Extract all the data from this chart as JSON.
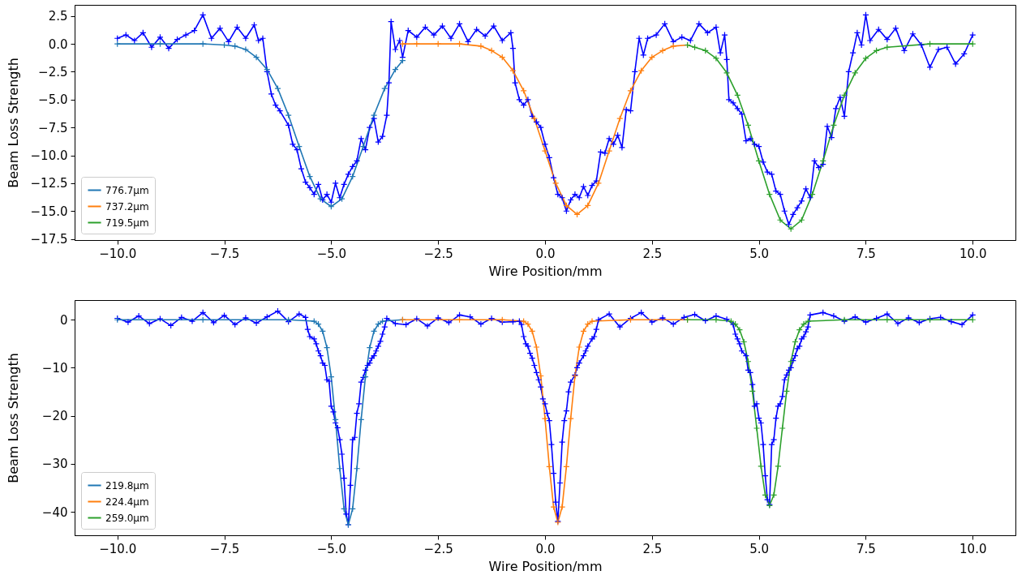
{
  "chart_data": [
    {
      "type": "line",
      "xlabel": "Wire Position/mm",
      "ylabel": "Beam Loss Strength",
      "xlim": [
        -11,
        11
      ],
      "ylim": [
        -17.6,
        3.5
      ],
      "xticks": [
        {
          "value": -10,
          "label": "−10.0"
        },
        {
          "value": -7.5,
          "label": "−7.5"
        },
        {
          "value": -5,
          "label": "−5.0"
        },
        {
          "value": -2.5,
          "label": "−2.5"
        },
        {
          "value": 0,
          "label": "0.0"
        },
        {
          "value": 2.5,
          "label": "2.5"
        },
        {
          "value": 5,
          "label": "5.0"
        },
        {
          "value": 7.5,
          "label": "7.5"
        },
        {
          "value": 10,
          "label": "10.0"
        }
      ],
      "yticks": [
        {
          "value": 2.5,
          "label": "2.5"
        },
        {
          "value": 0,
          "label": "0.0"
        },
        {
          "value": -2.5,
          "label": "−2.5"
        },
        {
          "value": -5,
          "label": "−5.0"
        },
        {
          "value": -7.5,
          "label": "−7.5"
        },
        {
          "value": -10,
          "label": "−10.0"
        },
        {
          "value": -12.5,
          "label": "−12.5"
        },
        {
          "value": -15,
          "label": "−15.0"
        },
        {
          "value": -17.5,
          "label": "−17.5"
        }
      ],
      "legend": "bottom left",
      "marker": "cross",
      "line_style": "solid",
      "grid": false,
      "series": [
        {
          "color": "#0000ff",
          "x": [
            -10,
            -9.8,
            -9.6,
            -9.4,
            -9.2,
            -9,
            -8.8,
            -8.6,
            -8.4,
            -8.2,
            -8,
            -7.8,
            -7.6,
            -7.4,
            -7.2,
            -7,
            -6.8,
            -6.7,
            -6.6,
            -6.5,
            -6.4,
            -6.3,
            -6.2,
            -6,
            -5.9,
            -5.8,
            -5.7,
            -5.6,
            -5.5,
            -5.4,
            -5.3,
            -5.2,
            -5.1,
            -5,
            -4.9,
            -4.8,
            -4.7,
            -4.6,
            -4.5,
            -4.4,
            -4.3,
            -4.2,
            -4.1,
            -4,
            -3.9,
            -3.8,
            -3.7,
            -3.65,
            -3.6,
            -3.5,
            -3.4,
            -3.33,
            -3.2,
            -3,
            -2.8,
            -2.6,
            -2.4,
            -2.2,
            -2,
            -1.8,
            -1.6,
            -1.4,
            -1.2,
            -1,
            -0.8,
            -0.75,
            -0.7,
            -0.6,
            -0.5,
            -0.4,
            -0.3,
            -0.2,
            -0.1,
            0,
            0.1,
            0.2,
            0.3,
            0.4,
            0.5,
            0.6,
            0.7,
            0.8,
            0.9,
            1,
            1.1,
            1.2,
            1.3,
            1.4,
            1.5,
            1.6,
            1.7,
            1.8,
            1.9,
            2,
            2.1,
            2.2,
            2.3,
            2.4,
            2.6,
            2.8,
            3,
            3.2,
            3.4,
            3.6,
            3.8,
            4,
            4.1,
            4.2,
            4.25,
            4.3,
            4.4,
            4.5,
            4.6,
            4.7,
            4.8,
            4.9,
            5,
            5.1,
            5.2,
            5.3,
            5.4,
            5.5,
            5.6,
            5.7,
            5.8,
            5.9,
            6,
            6.1,
            6.2,
            6.3,
            6.4,
            6.5,
            6.6,
            6.7,
            6.8,
            6.9,
            7,
            7.1,
            7.2,
            7.3,
            7.4,
            7.5,
            7.6,
            7.8,
            8,
            8.2,
            8.4,
            8.6,
            8.8,
            9,
            9.2,
            9.4,
            9.6,
            9.8,
            10
          ],
          "values": [
            0.5,
            0.8,
            0.3,
            1.0,
            -0.3,
            0.6,
            -0.4,
            0.4,
            0.8,
            1.2,
            2.6,
            0.5,
            1.4,
            0.2,
            1.5,
            0.5,
            1.7,
            0.3,
            0.5,
            -2.5,
            -4.5,
            -5.5,
            -6.0,
            -7.3,
            -9.0,
            -9.5,
            -11.2,
            -12.4,
            -12.9,
            -13.5,
            -12.6,
            -14.0,
            -13.5,
            -14.2,
            -12.5,
            -13.8,
            -12.6,
            -11.7,
            -11.0,
            -10.5,
            -8.5,
            -9.5,
            -7.5,
            -6.7,
            -8.8,
            -8.3,
            -6.4,
            -3.5,
            2.0,
            -0.5,
            0.3,
            -1.2,
            1.2,
            0.6,
            1.5,
            0.8,
            1.6,
            0.5,
            1.8,
            0.2,
            1.3,
            0.7,
            1.6,
            0.3,
            1.0,
            -0.4,
            -3.5,
            -5.0,
            -5.5,
            -5.0,
            -6.5,
            -7.0,
            -7.5,
            -9.0,
            -10.2,
            -12.0,
            -13.5,
            -13.8,
            -15.0,
            -14.0,
            -13.5,
            -13.8,
            -12.8,
            -13.6,
            -12.7,
            -12.3,
            -9.7,
            -9.8,
            -8.5,
            -9.0,
            -8.2,
            -9.3,
            -5.9,
            -6.0,
            -2.5,
            0.5,
            -1.0,
            0.5,
            0.8,
            1.8,
            0.2,
            0.6,
            0.3,
            1.8,
            1.0,
            1.5,
            -0.8,
            0.8,
            -1.4,
            -5.0,
            -5.3,
            -5.8,
            -6.3,
            -8.7,
            -8.5,
            -9.0,
            -9.2,
            -10.6,
            -11.5,
            -11.7,
            -13.2,
            -13.5,
            -15.0,
            -16.2,
            -15.3,
            -14.7,
            -14.1,
            -13.0,
            -13.8,
            -10.5,
            -11.1,
            -10.8,
            -7.4,
            -8.4,
            -5.8,
            -4.8,
            -6.5,
            -2.5,
            -0.8,
            1.0,
            -0.1,
            2.6,
            0.3,
            1.3,
            0.4,
            1.4,
            -0.6,
            0.9,
            -0.1,
            -2.1,
            -0.5,
            -0.3,
            -1.8,
            -0.9,
            0.8
          ]
        },
        {
          "name": "776.7µm",
          "color": "#1f77b4",
          "x": [
            -10,
            -9,
            -8,
            -7.5,
            -7.25,
            -7,
            -6.75,
            -6.5,
            -6.25,
            -6,
            -5.75,
            -5.5,
            -5.25,
            -5,
            -4.75,
            -4.5,
            -4.25,
            -4,
            -3.75,
            -3.5,
            -3.33
          ],
          "values": [
            0,
            0,
            0,
            -0.1,
            -0.2,
            -0.5,
            -1.2,
            -2.3,
            -4.0,
            -6.4,
            -9.2,
            -11.9,
            -13.9,
            -14.6,
            -13.9,
            -11.9,
            -9.2,
            -6.4,
            -4.0,
            -2.3,
            -1.5
          ]
        },
        {
          "name": "737.2µm",
          "color": "#ff7f0e",
          "x": [
            -3.33,
            -3,
            -2.5,
            -2,
            -1.5,
            -1.25,
            -1,
            -0.75,
            -0.5,
            -0.25,
            0,
            0.25,
            0.5,
            0.75,
            1,
            1.25,
            1.5,
            1.75,
            2,
            2.25,
            2.5,
            2.75,
            3,
            3.33
          ],
          "values": [
            0,
            0,
            0,
            0,
            -0.2,
            -0.6,
            -1.2,
            -2.4,
            -4.2,
            -6.7,
            -9.6,
            -12.5,
            -14.5,
            -15.3,
            -14.5,
            -12.5,
            -9.6,
            -6.7,
            -4.2,
            -2.4,
            -1.2,
            -0.6,
            -0.2,
            -0.1
          ]
        },
        {
          "name": "719.5µm",
          "color": "#2ca02c",
          "x": [
            3.33,
            3.5,
            3.75,
            4,
            4.25,
            4.5,
            4.75,
            5,
            5.25,
            5.5,
            5.75,
            6,
            6.25,
            6.5,
            6.75,
            7,
            7.25,
            7.5,
            7.75,
            8,
            9,
            10
          ],
          "values": [
            -0.1,
            -0.3,
            -0.6,
            -1.3,
            -2.6,
            -4.6,
            -7.3,
            -10.5,
            -13.5,
            -15.8,
            -16.6,
            -15.8,
            -13.5,
            -10.5,
            -7.3,
            -4.6,
            -2.6,
            -1.3,
            -0.6,
            -0.3,
            0,
            0
          ]
        }
      ]
    },
    {
      "type": "line",
      "xlabel": "Wire Position/mm",
      "ylabel": "Beam Loss Strength",
      "xlim": [
        -11,
        11
      ],
      "ylim": [
        -44.9,
        4.1
      ],
      "xticks": [
        {
          "value": -10,
          "label": "−10.0"
        },
        {
          "value": -7.5,
          "label": "−7.5"
        },
        {
          "value": -5,
          "label": "−5.0"
        },
        {
          "value": -2.5,
          "label": "−2.5"
        },
        {
          "value": 0,
          "label": "0.0"
        },
        {
          "value": 2.5,
          "label": "2.5"
        },
        {
          "value": 5,
          "label": "5.0"
        },
        {
          "value": 7.5,
          "label": "7.5"
        },
        {
          "value": 10,
          "label": "10.0"
        }
      ],
      "yticks": [
        0,
        {
          "value": -10,
          "label": "−10"
        },
        {
          "value": -20,
          "label": "−20"
        },
        {
          "value": -30,
          "label": "−30"
        },
        {
          "value": -40,
          "label": "−40"
        }
      ],
      "legend": "bottom left",
      "marker": "cross",
      "line_style": "solid",
      "grid": false,
      "series": [
        {
          "color": "#0000ff",
          "x": [
            -10,
            -9.75,
            -9.5,
            -9.25,
            -9,
            -8.75,
            -8.5,
            -8.25,
            -8,
            -7.75,
            -7.5,
            -7.25,
            -7,
            -6.75,
            -6.5,
            -6.25,
            -6,
            -5.75,
            -5.6,
            -5.55,
            -5.5,
            -5.4,
            -5.35,
            -5.3,
            -5.25,
            -5.2,
            -5.15,
            -5.1,
            -5.05,
            -5,
            -4.95,
            -4.9,
            -4.85,
            -4.8,
            -4.75,
            -4.7,
            -4.65,
            -4.6,
            -4.55,
            -4.5,
            -4.45,
            -4.4,
            -4.35,
            -4.3,
            -4.25,
            -4.2,
            -4.15,
            -4.1,
            -4.05,
            -4,
            -3.95,
            -3.9,
            -3.85,
            -3.8,
            -3.75,
            -3.7,
            -3.5,
            -3.25,
            -3,
            -2.75,
            -2.5,
            -2.25,
            -2,
            -1.75,
            -1.5,
            -1.25,
            -1,
            -0.75,
            -0.6,
            -0.55,
            -0.5,
            -0.45,
            -0.4,
            -0.35,
            -0.3,
            -0.25,
            -0.2,
            -0.15,
            -0.1,
            -0.05,
            0,
            0.05,
            0.1,
            0.15,
            0.2,
            0.25,
            0.3,
            0.35,
            0.4,
            0.45,
            0.5,
            0.55,
            0.6,
            0.7,
            0.75,
            0.8,
            0.9,
            0.95,
            1,
            1.1,
            1.15,
            1.2,
            1.25,
            1.5,
            1.75,
            2,
            2.25,
            2.5,
            2.75,
            3,
            3.25,
            3.5,
            3.75,
            4,
            4.25,
            4.4,
            4.45,
            4.5,
            4.55,
            4.6,
            4.7,
            4.75,
            4.8,
            4.85,
            4.9,
            4.95,
            5,
            5.05,
            5.1,
            5.15,
            5.2,
            5.25,
            5.3,
            5.35,
            5.4,
            5.45,
            5.5,
            5.55,
            5.6,
            5.65,
            5.7,
            5.75,
            5.8,
            5.85,
            5.9,
            5.95,
            6,
            6.05,
            6.1,
            6.15,
            6.2,
            6.5,
            6.75,
            7,
            7.25,
            7.5,
            7.75,
            8,
            8.25,
            8.5,
            8.75,
            9,
            9.25,
            9.5,
            9.75,
            10
          ],
          "values": [
            0.3,
            -0.5,
            0.8,
            -0.8,
            0.2,
            -1.2,
            0.5,
            -0.3,
            1.5,
            -0.6,
            0.9,
            -1.0,
            0.4,
            -0.7,
            0.6,
            1.8,
            -0.4,
            1.2,
            0.5,
            -2.0,
            -3.5,
            -4.0,
            -5.0,
            -6.5,
            -7.5,
            -9.0,
            -9.5,
            -12.5,
            -12.8,
            -18.0,
            -19.2,
            -21.5,
            -22.5,
            -25.0,
            -28.0,
            -33.0,
            -40.5,
            -42.7,
            -34.5,
            -25.0,
            -24.5,
            -19.5,
            -17.5,
            -13.0,
            -12.0,
            -10.5,
            -9.5,
            -9.0,
            -8.0,
            -7.5,
            -6.5,
            -5.5,
            -4.5,
            -3.0,
            -1.5,
            0.3,
            -0.8,
            -1.0,
            0.2,
            -1.3,
            0.4,
            -0.6,
            1.0,
            0.6,
            -0.9,
            0.3,
            -0.5,
            -0.4,
            -0.3,
            -1.0,
            -3.5,
            -5.0,
            -5.5,
            -7.0,
            -8.0,
            -9.5,
            -11.0,
            -12.5,
            -14.0,
            -16.5,
            -17.5,
            -19.5,
            -21.0,
            -26.0,
            -32.0,
            -38.0,
            -42.0,
            -34.0,
            -25.5,
            -21.0,
            -19.0,
            -15.0,
            -13.0,
            -11.5,
            -10.0,
            -9.0,
            -7.5,
            -6.5,
            -5.5,
            -4.0,
            -3.5,
            -2.0,
            0.0,
            1.2,
            -1.5,
            0.3,
            1.5,
            -0.5,
            0.4,
            -0.9,
            0.5,
            1.1,
            -0.2,
            0.8,
            0.1,
            -1.0,
            -3.0,
            -4.0,
            -5.0,
            -6.5,
            -7.5,
            -10.5,
            -11.0,
            -13.5,
            -18.0,
            -17.5,
            -20.5,
            -21.5,
            -26.0,
            -32.5,
            -37.5,
            -38.5,
            -26.0,
            -25.0,
            -20.5,
            -18.0,
            -17.5,
            -16.0,
            -12.5,
            -11.5,
            -10.5,
            -10.0,
            -8.5,
            -7.5,
            -6.0,
            -5.5,
            -4.0,
            -3.5,
            -2.5,
            -1.5,
            1.0,
            1.5,
            0.8,
            -0.3,
            0.6,
            -0.5,
            0.3,
            1.2,
            -0.8,
            0.4,
            -0.6,
            0.2,
            0.5,
            -0.4,
            -1.0,
            1.0
          ]
        },
        {
          "name": "219.8µm",
          "color": "#1f77b4",
          "x": [
            -10,
            -8,
            -6,
            -5.4,
            -5.3,
            -5.2,
            -5.1,
            -5,
            -4.9,
            -4.8,
            -4.7,
            -4.6,
            -4.5,
            -4.4,
            -4.3,
            -4.2,
            -4.1,
            -4,
            -3.9,
            -3.8,
            -3.33
          ],
          "values": [
            0,
            0,
            0,
            -0.3,
            -0.9,
            -2.4,
            -5.8,
            -11.9,
            -20.8,
            -31.0,
            -39.4,
            -42.7,
            -39.4,
            -31.0,
            -20.8,
            -11.9,
            -5.8,
            -2.4,
            -0.9,
            -0.3,
            0
          ]
        },
        {
          "name": "224.4µm",
          "color": "#ff7f0e",
          "x": [
            -3.33,
            -2,
            -1,
            -0.5,
            -0.4,
            -0.3,
            -0.2,
            -0.1,
            0,
            0.1,
            0.2,
            0.3,
            0.4,
            0.5,
            0.6,
            0.7,
            0.8,
            0.9,
            1,
            1.1,
            2,
            3.33
          ],
          "values": [
            0,
            0,
            0,
            -0.3,
            -0.9,
            -2.4,
            -5.7,
            -11.7,
            -20.6,
            -30.6,
            -39.0,
            -42.2,
            -39.0,
            -30.6,
            -20.6,
            -11.7,
            -5.7,
            -2.4,
            -0.9,
            -0.3,
            0,
            0
          ]
        },
        {
          "name": "259.0µm",
          "color": "#2ca02c",
          "x": [
            3.33,
            4,
            4.35,
            4.45,
            4.55,
            4.65,
            4.75,
            4.85,
            4.95,
            5.05,
            5.15,
            5.25,
            5.35,
            5.45,
            5.55,
            5.65,
            5.75,
            5.85,
            5.95,
            6.05,
            6.15,
            7,
            8,
            9,
            10
          ],
          "values": [
            0,
            0,
            -0.3,
            -0.9,
            -2.1,
            -4.6,
            -8.7,
            -14.9,
            -22.6,
            -30.5,
            -36.5,
            -38.7,
            -36.5,
            -30.5,
            -22.6,
            -14.9,
            -8.7,
            -4.6,
            -2.1,
            -0.9,
            -0.3,
            0,
            0,
            0,
            0
          ]
        }
      ]
    }
  ]
}
